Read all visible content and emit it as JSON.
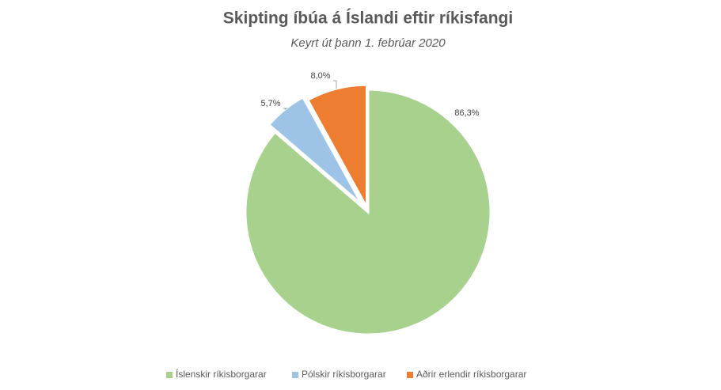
{
  "chart_data": {
    "type": "pie",
    "title": "Skipting íbúa á Íslandi eftir ríkisfangi",
    "subtitle": "Keyrt út þann 1. febrúar 2020",
    "categories": [
      "Íslenskir ríkisborgarar",
      "Pólskir ríkisborgarar",
      "Aðrir erlendir ríkisborgarar"
    ],
    "values": [
      86.3,
      5.7,
      8.0
    ],
    "value_labels": [
      "86,3%",
      "5,7%",
      "8,0%"
    ],
    "colors": [
      "#a9d18e",
      "#9dc3e6",
      "#ed7d31"
    ],
    "legend": "bottom"
  }
}
